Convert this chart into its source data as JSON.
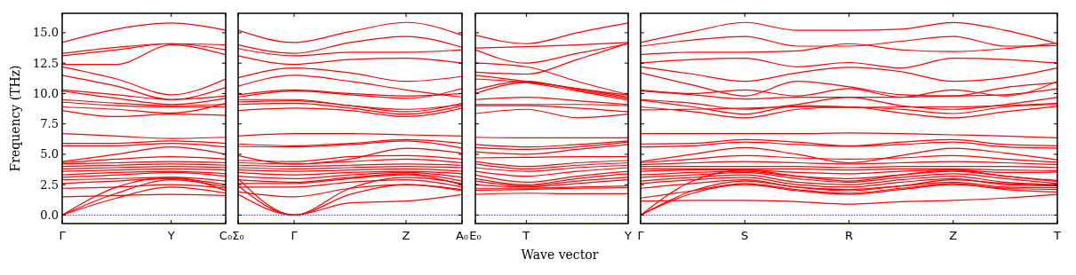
{
  "chart_data": [
    {
      "type": "line",
      "ylabel": "Frequency (THz)",
      "categories": [
        "Γ",
        null,
        "Y",
        "C₀"
      ],
      "ylim": [
        -0.7,
        16.6
      ],
      "yticks": [
        {
          "value": 0,
          "label": "0.0"
        },
        {
          "value": 2.5,
          "label": "2.5"
        },
        {
          "value": 5,
          "label": "5.0"
        },
        {
          "value": 7.5,
          "label": "7.5"
        },
        {
          "value": 10,
          "label": "10.0"
        },
        {
          "value": 12.5,
          "label": "12.5"
        },
        {
          "value": 15,
          "label": "15.0"
        }
      ],
      "ref_lines": [
        {
          "axis": "y",
          "value": 0,
          "color": "#0000ff",
          "line_style": "dotted"
        }
      ],
      "series": [
        {
          "color": "#ff0000",
          "values": [
            14.2,
            15.3,
            15.8,
            15.2
          ]
        },
        {
          "color": "#ff0000",
          "values": [
            13.3,
            13.8,
            14.1,
            14.0
          ]
        },
        {
          "color": "#ff0000",
          "values": [
            13.1,
            13.6,
            14.1,
            13.6
          ]
        },
        {
          "color": "#ff0000",
          "values": [
            12.4,
            12.4,
            14.0,
            13.2
          ]
        },
        {
          "color": "#ff0000",
          "values": [
            12.2,
            11.2,
            9.9,
            11.2
          ]
        },
        {
          "color": "#ff0000",
          "values": [
            11.5,
            10.6,
            9.5,
            10.5
          ]
        },
        {
          "color": "#ff0000",
          "values": [
            10.3,
            9.9,
            9.5,
            9.8
          ]
        },
        {
          "color": "#ff0000",
          "values": [
            10.2,
            9.6,
            9.1,
            9.6
          ]
        },
        {
          "color": "#ff0000",
          "values": [
            9.5,
            9.2,
            9.0,
            9.1
          ]
        },
        {
          "color": "#ff0000",
          "values": [
            9.3,
            9.0,
            8.9,
            8.9
          ]
        },
        {
          "color": "#ff0000",
          "values": [
            8.9,
            8.7,
            8.4,
            9.2
          ]
        },
        {
          "color": "#ff0000",
          "values": [
            8.6,
            8.1,
            8.3,
            8.2
          ]
        },
        {
          "color": "#ff0000",
          "values": [
            6.7,
            6.5,
            6.3,
            6.4
          ]
        },
        {
          "color": "#ff0000",
          "values": [
            5.9,
            5.9,
            6.1,
            5.9
          ]
        },
        {
          "color": "#ff0000",
          "values": [
            5.7,
            5.7,
            5.9,
            5.6
          ]
        },
        {
          "color": "#ff0000",
          "values": [
            4.4,
            5.0,
            5.6,
            5.0
          ]
        },
        {
          "color": "#ff0000",
          "values": [
            4.3,
            4.6,
            4.8,
            4.6
          ]
        },
        {
          "color": "#ff0000",
          "values": [
            4.2,
            4.3,
            4.4,
            4.3
          ]
        },
        {
          "color": "#ff0000",
          "values": [
            4.0,
            4.1,
            4.2,
            4.1
          ]
        },
        {
          "color": "#ff0000",
          "values": [
            3.8,
            3.9,
            4.0,
            3.9
          ]
        },
        {
          "color": "#ff0000",
          "values": [
            3.6,
            3.7,
            3.8,
            3.7
          ]
        },
        {
          "color": "#ff0000",
          "values": [
            3.3,
            3.5,
            3.6,
            3.4
          ]
        },
        {
          "color": "#ff0000",
          "values": [
            3.1,
            3.3,
            3.5,
            3.2
          ]
        },
        {
          "color": "#ff0000",
          "values": [
            2.9,
            3.0,
            3.1,
            2.8
          ]
        },
        {
          "color": "#ff0000",
          "values": [
            2.6,
            2.8,
            3.0,
            2.5
          ]
        },
        {
          "color": "#ff0000",
          "values": [
            2.2,
            2.3,
            2.5,
            2.2
          ]
        },
        {
          "color": "#ff0000",
          "values": [
            1.5,
            1.6,
            1.7,
            1.6
          ]
        },
        {
          "color": "#ff0000",
          "values": [
            0,
            2.3,
            3.1,
            2.0
          ]
        },
        {
          "color": "#ff0000",
          "values": [
            0,
            1.8,
            2.9,
            2.3
          ]
        },
        {
          "color": "#ff0000",
          "values": [
            0,
            1.4,
            2.3,
            1.8
          ]
        }
      ]
    },
    {
      "type": "line",
      "categories": [
        "Σ₀",
        "Γ",
        null,
        "Z",
        "A₀"
      ],
      "ylim": [
        -0.7,
        16.6
      ],
      "yticks": [
        {
          "value": 0,
          "label": null
        },
        {
          "value": 2.5,
          "label": null
        },
        {
          "value": 5,
          "label": null
        },
        {
          "value": 7.5,
          "label": null
        },
        {
          "value": 10,
          "label": null
        },
        {
          "value": 12.5,
          "label": null
        },
        {
          "value": 15,
          "label": null
        }
      ],
      "tick_labels": "x",
      "ref_lines": [
        {
          "axis": "y",
          "value": 0,
          "color": "#0000ff",
          "line_style": "dotted"
        }
      ],
      "series": [
        {
          "color": "#ff0000",
          "values": [
            15.2,
            14.2,
            15.1,
            15.85,
            14.8
          ]
        },
        {
          "color": "#ff0000",
          "values": [
            14.0,
            13.3,
            14.2,
            14.7,
            13.8
          ]
        },
        {
          "color": "#ff0000",
          "values": [
            13.7,
            13.1,
            13.4,
            13.4,
            13.6
          ]
        },
        {
          "color": "#ff0000",
          "values": [
            13.1,
            12.4,
            12.8,
            12.9,
            12.5
          ]
        },
        {
          "color": "#ff0000",
          "values": [
            11.3,
            12.1,
            11.7,
            11.0,
            11.4
          ]
        },
        {
          "color": "#ff0000",
          "values": [
            10.6,
            11.5,
            11.0,
            10.3,
            9.7
          ]
        },
        {
          "color": "#ff0000",
          "values": [
            9.9,
            10.3,
            10.0,
            9.8,
            10.0
          ]
        },
        {
          "color": "#ff0000",
          "values": [
            9.7,
            10.2,
            9.9,
            9.6,
            10.4
          ]
        },
        {
          "color": "#ff0000",
          "values": [
            9.5,
            9.5,
            9.0,
            8.7,
            9.1
          ]
        },
        {
          "color": "#ff0000",
          "values": [
            9.3,
            9.4,
            9.0,
            8.5,
            9.2
          ]
        },
        {
          "color": "#ff0000",
          "values": [
            9.1,
            9.2,
            8.8,
            8.3,
            9.0
          ]
        },
        {
          "color": "#ff0000",
          "values": [
            8.6,
            8.8,
            8.6,
            8.1,
            8.8
          ]
        },
        {
          "color": "#ff0000",
          "values": [
            6.5,
            6.7,
            6.7,
            6.6,
            6.5
          ]
        },
        {
          "color": "#ff0000",
          "values": [
            5.85,
            5.7,
            5.9,
            6.2,
            5.9
          ]
        },
        {
          "color": "#ff0000",
          "values": [
            5.65,
            5.6,
            5.8,
            6.1,
            5.5
          ]
        },
        {
          "color": "#ff0000",
          "values": [
            4.9,
            4.2,
            4.6,
            5.5,
            5.1
          ]
        },
        {
          "color": "#ff0000",
          "values": [
            4.5,
            4.4,
            4.8,
            4.9,
            4.6
          ]
        },
        {
          "color": "#ff0000",
          "values": [
            4.3,
            4.2,
            4.4,
            4.6,
            4.3
          ]
        },
        {
          "color": "#ff0000",
          "values": [
            4.1,
            4.0,
            4.1,
            4.2,
            4.1
          ]
        },
        {
          "color": "#ff0000",
          "values": [
            3.9,
            3.8,
            3.9,
            4.0,
            3.9
          ]
        },
        {
          "color": "#ff0000",
          "values": [
            3.7,
            3.6,
            3.7,
            3.8,
            3.6
          ]
        },
        {
          "color": "#ff0000",
          "values": [
            3.5,
            3.3,
            3.5,
            3.6,
            3.4
          ]
        },
        {
          "color": "#ff0000",
          "values": [
            3.2,
            3.0,
            3.3,
            3.5,
            3.1
          ]
        },
        {
          "color": "#ff0000",
          "values": [
            2.9,
            2.7,
            3.1,
            3.4,
            2.8
          ]
        },
        {
          "color": "#ff0000",
          "values": [
            2.6,
            2.6,
            3.0,
            3.3,
            2.5
          ]
        },
        {
          "color": "#ff0000",
          "values": [
            2.3,
            2.3,
            2.7,
            2.9,
            2.3
          ]
        },
        {
          "color": "#ff0000",
          "values": [
            1.9,
            1.5,
            2.2,
            2.5,
            2.0
          ]
        },
        {
          "color": "#ff0000",
          "values": [
            1.7,
            0,
            1.0,
            1.15,
            1.7
          ]
        },
        {
          "color": "#ff0000",
          "values": [
            2.4,
            0,
            1.7,
            2.5,
            2.1
          ]
        },
        {
          "color": "#ff0000",
          "values": [
            3.0,
            0,
            2.2,
            3.1,
            2.6
          ]
        }
      ]
    },
    {
      "type": "line",
      "xlabel": "Wave vector",
      "categories": [
        "E₀",
        "T",
        null,
        "Y"
      ],
      "ylim": [
        -0.7,
        16.6
      ],
      "yticks": [
        {
          "value": 0,
          "label": null
        },
        {
          "value": 2.5,
          "label": null
        },
        {
          "value": 5,
          "label": null
        },
        {
          "value": 7.5,
          "label": null
        },
        {
          "value": 10,
          "label": null
        },
        {
          "value": 12.5,
          "label": null
        },
        {
          "value": 15,
          "label": null
        }
      ],
      "tick_labels": "x",
      "ref_lines": [
        {
          "axis": "y",
          "value": 0,
          "color": "#0000ff",
          "line_style": "dotted"
        }
      ],
      "series": [
        {
          "color": "#ff0000",
          "values": [
            14.8,
            14.1,
            15.0,
            15.8
          ]
        },
        {
          "color": "#ff0000",
          "values": [
            13.75,
            13.85,
            14.0,
            14.2
          ]
        },
        {
          "color": "#ff0000",
          "values": [
            13.6,
            12.5,
            13.3,
            14.1
          ]
        },
        {
          "color": "#ff0000",
          "values": [
            12.5,
            12.2,
            11.0,
            9.9
          ]
        },
        {
          "color": "#ff0000",
          "values": [
            11.75,
            11.6,
            12.8,
            14.15
          ]
        },
        {
          "color": "#ff0000",
          "values": [
            11.5,
            11.0,
            10.4,
            9.7
          ]
        },
        {
          "color": "#ff0000",
          "values": [
            11.2,
            10.9,
            10.2,
            9.45
          ]
        },
        {
          "color": "#ff0000",
          "values": [
            10.3,
            11.0,
            10.3,
            9.6
          ]
        },
        {
          "color": "#ff0000",
          "values": [
            10.0,
            10.9,
            10.4,
            9.85
          ]
        },
        {
          "color": "#ff0000",
          "values": [
            9.5,
            9.7,
            9.4,
            9.1
          ]
        },
        {
          "color": "#ff0000",
          "values": [
            9.1,
            9.1,
            9.1,
            9.0
          ]
        },
        {
          "color": "#ff0000",
          "values": [
            9.0,
            9.0,
            8.8,
            8.5
          ]
        },
        {
          "color": "#ff0000",
          "values": [
            8.35,
            8.7,
            8.0,
            8.3
          ]
        },
        {
          "color": "#ff0000",
          "values": [
            6.4,
            6.35,
            6.35,
            6.35
          ]
        },
        {
          "color": "#ff0000",
          "values": [
            5.8,
            5.6,
            5.8,
            6.1
          ]
        },
        {
          "color": "#ff0000",
          "values": [
            5.55,
            5.4,
            5.6,
            6.0
          ]
        },
        {
          "color": "#ff0000",
          "values": [
            5.2,
            5.0,
            5.4,
            5.8
          ]
        },
        {
          "color": "#ff0000",
          "values": [
            4.7,
            4.75,
            4.8,
            4.8
          ]
        },
        {
          "color": "#ff0000",
          "values": [
            4.4,
            4.0,
            4.3,
            4.5
          ]
        },
        {
          "color": "#ff0000",
          "values": [
            4.2,
            3.8,
            4.1,
            4.3
          ]
        },
        {
          "color": "#ff0000",
          "values": [
            3.9,
            3.6,
            3.9,
            4.1
          ]
        },
        {
          "color": "#ff0000",
          "values": [
            3.6,
            3.2,
            3.6,
            3.9
          ]
        },
        {
          "color": "#ff0000",
          "values": [
            3.3,
            2.7,
            3.2,
            3.6
          ]
        },
        {
          "color": "#ff0000",
          "values": [
            3.0,
            2.5,
            3.0,
            3.4
          ]
        },
        {
          "color": "#ff0000",
          "values": [
            2.8,
            2.4,
            2.8,
            3.1
          ]
        },
        {
          "color": "#ff0000",
          "values": [
            2.5,
            2.3,
            2.6,
            2.9
          ]
        },
        {
          "color": "#ff0000",
          "values": [
            2.2,
            2.2,
            2.3,
            2.4
          ]
        },
        {
          "color": "#ff0000",
          "values": [
            2.05,
            2.1,
            2.2,
            2.25
          ]
        },
        {
          "color": "#ff0000",
          "values": [
            1.7,
            1.8,
            1.75,
            1.75
          ]
        }
      ]
    },
    {
      "type": "line",
      "categories": [
        "Γ",
        null,
        "S",
        null,
        "R",
        null,
        "Z",
        null,
        "T"
      ],
      "ylim": [
        -0.7,
        16.6
      ],
      "yticks": [
        {
          "value": 0,
          "label": null
        },
        {
          "value": 2.5,
          "label": null
        },
        {
          "value": 5,
          "label": null
        },
        {
          "value": 7.5,
          "label": null
        },
        {
          "value": 10,
          "label": null
        },
        {
          "value": 12.5,
          "label": null
        },
        {
          "value": 15,
          "label": null
        }
      ],
      "tick_labels": "x",
      "ref_lines": [
        {
          "axis": "y",
          "value": 0,
          "color": "#0000ff",
          "line_style": "dotted"
        }
      ],
      "series": [
        {
          "color": "#ff0000",
          "values": [
            14.2,
            15.1,
            15.85,
            15.2,
            15.2,
            15.3,
            15.85,
            15.2,
            14.1
          ]
        },
        {
          "color": "#ff0000",
          "values": [
            13.9,
            14.4,
            14.7,
            13.9,
            13.9,
            14.3,
            14.7,
            13.9,
            13.95
          ]
        },
        {
          "color": "#ff0000",
          "values": [
            13.2,
            13.4,
            13.4,
            13.5,
            14.1,
            13.6,
            13.45,
            13.7,
            14.15
          ]
        },
        {
          "color": "#ff0000",
          "values": [
            12.5,
            12.8,
            12.9,
            12.2,
            12.55,
            12.1,
            12.9,
            12.8,
            12.5
          ]
        },
        {
          "color": "#ff0000",
          "values": [
            12.2,
            11.6,
            11.0,
            11.7,
            12.15,
            11.8,
            11.0,
            11.3,
            12.1
          ]
        },
        {
          "color": "#ff0000",
          "values": [
            11.7,
            10.7,
            9.8,
            11.0,
            10.55,
            9.9,
            9.8,
            10.5,
            10.9
          ]
        },
        {
          "color": "#ff0000",
          "values": [
            10.3,
            10.0,
            10.3,
            9.8,
            10.4,
            9.7,
            10.3,
            9.8,
            11.0
          ]
        },
        {
          "color": "#ff0000",
          "values": [
            10.2,
            9.9,
            9.55,
            9.7,
            9.7,
            9.7,
            9.8,
            9.9,
            10.4
          ]
        },
        {
          "color": "#ff0000",
          "values": [
            9.5,
            9.2,
            8.7,
            9.1,
            9.7,
            9.0,
            8.7,
            9.1,
            9.7
          ]
        },
        {
          "color": "#ff0000",
          "values": [
            9.45,
            8.9,
            8.3,
            9.0,
            8.9,
            8.7,
            8.35,
            8.9,
            9.1
          ]
        },
        {
          "color": "#ff0000",
          "values": [
            8.9,
            8.5,
            8.0,
            8.7,
            8.9,
            8.4,
            8.0,
            8.5,
            8.95
          ]
        },
        {
          "color": "#ff0000",
          "values": [
            8.65,
            8.7,
            8.8,
            8.9,
            8.85,
            8.9,
            8.9,
            9.0,
            9.2
          ]
        },
        {
          "color": "#ff0000",
          "values": [
            6.7,
            6.7,
            6.7,
            6.7,
            6.75,
            6.7,
            6.6,
            6.5,
            6.35
          ]
        },
        {
          "color": "#ff0000",
          "values": [
            5.85,
            5.9,
            6.2,
            6.0,
            5.7,
            6.0,
            6.2,
            5.8,
            5.7
          ]
        },
        {
          "color": "#ff0000",
          "values": [
            5.6,
            5.7,
            6.0,
            5.8,
            5.65,
            5.8,
            6.0,
            5.6,
            5.5
          ]
        },
        {
          "color": "#ff0000",
          "values": [
            4.4,
            5.0,
            5.55,
            5.0,
            4.3,
            4.9,
            5.5,
            5.1,
            4.55
          ]
        },
        {
          "color": "#ff0000",
          "values": [
            4.3,
            4.6,
            4.9,
            4.7,
            4.6,
            4.7,
            4.9,
            4.6,
            4.35
          ]
        },
        {
          "color": "#ff0000",
          "values": [
            4.15,
            4.3,
            4.4,
            4.3,
            4.2,
            4.3,
            4.4,
            4.3,
            4.15
          ]
        },
        {
          "color": "#ff0000",
          "values": [
            4.0,
            4.0,
            4.0,
            4.0,
            3.9,
            4.0,
            4.0,
            4.0,
            3.9
          ]
        },
        {
          "color": "#ff0000",
          "values": [
            3.8,
            3.8,
            3.8,
            3.8,
            3.7,
            3.8,
            3.8,
            3.7,
            3.65
          ]
        },
        {
          "color": "#ff0000",
          "values": [
            3.6,
            3.7,
            3.7,
            3.5,
            3.4,
            3.6,
            3.7,
            3.5,
            3.55
          ]
        },
        {
          "color": "#ff0000",
          "values": [
            3.3,
            3.5,
            3.6,
            3.2,
            3.0,
            3.3,
            3.6,
            3.2,
            2.75
          ]
        },
        {
          "color": "#ff0000",
          "values": [
            3.1,
            3.3,
            3.5,
            3.0,
            2.7,
            3.1,
            3.4,
            3.0,
            2.6
          ]
        },
        {
          "color": "#ff0000",
          "values": [
            2.8,
            3.1,
            3.3,
            2.7,
            2.5,
            2.9,
            3.2,
            2.7,
            2.5
          ]
        },
        {
          "color": "#ff0000",
          "values": [
            2.6,
            2.9,
            3.1,
            2.5,
            2.3,
            2.7,
            3.0,
            2.5,
            2.4
          ]
        },
        {
          "color": "#ff0000",
          "values": [
            2.2,
            2.6,
            2.9,
            2.3,
            2.1,
            2.4,
            2.7,
            2.3,
            2.25
          ]
        },
        {
          "color": "#ff0000",
          "values": [
            1.4,
            2.0,
            2.6,
            2.1,
            1.8,
            2.2,
            2.6,
            2.1,
            1.9
          ]
        },
        {
          "color": "#ff0000",
          "values": [
            1.15,
            1.2,
            1.2,
            1.1,
            0.9,
            1.1,
            1.2,
            1.4,
            1.7
          ]
        },
        {
          "color": "#ff0000",
          "values": [
            0,
            1.8,
            2.5,
            2.0,
            1.7,
            2.1,
            2.5,
            2.2,
            2.1
          ]
        },
        {
          "color": "#ff0000",
          "values": [
            0,
            2.0,
            2.8,
            2.3,
            2.0,
            2.4,
            2.9,
            2.6,
            2.45
          ]
        },
        {
          "color": "#ff0000",
          "values": [
            0,
            2.8,
            3.7,
            3.2,
            2.8,
            3.3,
            3.7,
            3.2,
            2.85
          ]
        }
      ]
    }
  ]
}
